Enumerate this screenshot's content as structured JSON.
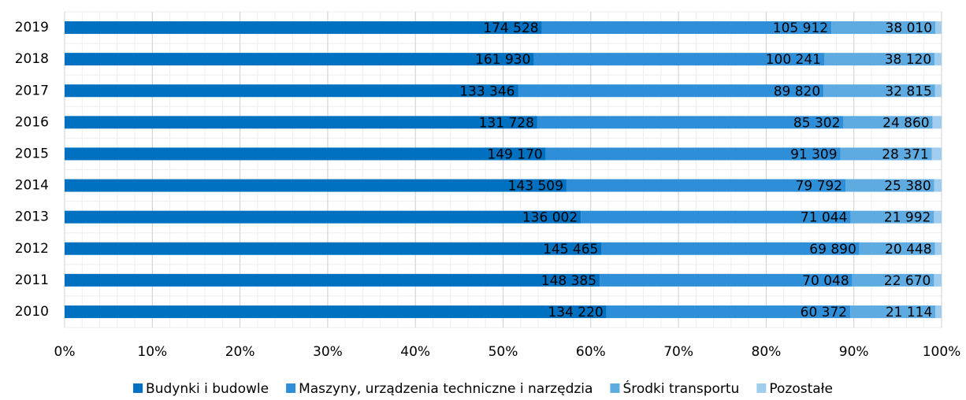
{
  "chart_data": {
    "type": "bar",
    "orientation": "horizontal",
    "stacking": "percent",
    "categories": [
      "2019",
      "2018",
      "2017",
      "2016",
      "2015",
      "2014",
      "2013",
      "2012",
      "2011",
      "2010"
    ],
    "series": [
      {
        "name": "Budynki i budowle",
        "color": "#0070c0",
        "values": [
          174528,
          161930,
          133346,
          131728,
          149170,
          143509,
          136002,
          145465,
          148385,
          134220
        ],
        "value_labels": [
          "174 528",
          "161 930",
          "133 346",
          "131 728",
          "149 170",
          "143 509",
          "136 002",
          "145 465",
          "148 385",
          "134 220"
        ]
      },
      {
        "name": "Maszyny, urządzenia techniczne i narzędzia",
        "color": "#2e8fd8",
        "values": [
          105912,
          100241,
          89820,
          85302,
          91309,
          79792,
          71044,
          69890,
          70048,
          60372
        ],
        "value_labels": [
          "105 912",
          "100 241",
          "89 820",
          "85 302",
          "91 309",
          "79 792",
          "71 044",
          "69 890",
          "70 048",
          "60 372"
        ]
      },
      {
        "name": "Środki transportu",
        "color": "#5eabe2",
        "values": [
          38010,
          38120,
          32815,
          24860,
          28371,
          25380,
          21992,
          20448,
          22670,
          21114
        ],
        "value_labels": [
          "38 010",
          "38 120",
          "32 815",
          "24 860",
          "28 371",
          "25 380",
          "21 992",
          "20 448",
          "22 670",
          "21 114"
        ]
      },
      {
        "name": "Pozostałe",
        "color": "#a0cdee",
        "values": [
          2300,
          2400,
          1900,
          2500,
          3000,
          2100,
          2000,
          1800,
          2100,
          1500
        ]
      }
    ],
    "xlim": [
      0,
      100
    ],
    "xticks": [
      {
        "value": 0,
        "label": "0%"
      },
      {
        "value": 10,
        "label": "10%"
      },
      {
        "value": 20,
        "label": "20%"
      },
      {
        "value": 30,
        "label": "30%"
      },
      {
        "value": 40,
        "label": "40%"
      },
      {
        "value": 50,
        "label": "50%"
      },
      {
        "value": 60,
        "label": "60%"
      },
      {
        "value": 70,
        "label": "70%"
      },
      {
        "value": 80,
        "label": "80%"
      },
      {
        "value": 90,
        "label": "90%"
      },
      {
        "value": 100,
        "label": "100%"
      }
    ],
    "grid": true,
    "legend": "bottom"
  }
}
